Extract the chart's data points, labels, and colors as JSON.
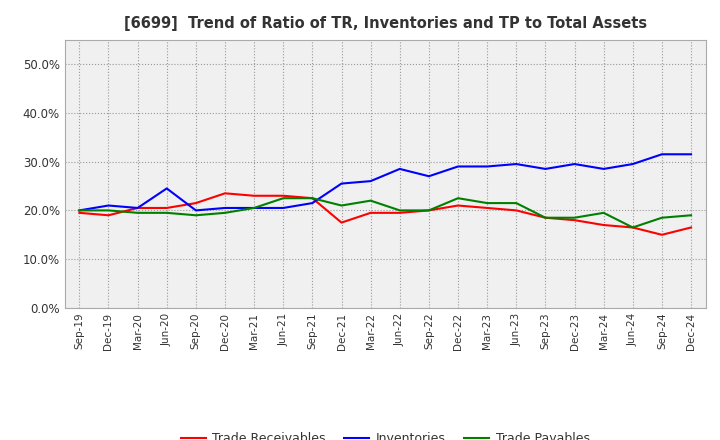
{
  "title": "[6699]  Trend of Ratio of TR, Inventories and TP to Total Assets",
  "x_labels": [
    "Sep-19",
    "Dec-19",
    "Mar-20",
    "Jun-20",
    "Sep-20",
    "Dec-20",
    "Mar-21",
    "Jun-21",
    "Sep-21",
    "Dec-21",
    "Mar-22",
    "Jun-22",
    "Sep-22",
    "Dec-22",
    "Mar-23",
    "Jun-23",
    "Sep-23",
    "Dec-23",
    "Mar-24",
    "Jun-24",
    "Sep-24",
    "Dec-24"
  ],
  "trade_receivables": [
    19.5,
    19.0,
    20.5,
    20.5,
    21.5,
    23.5,
    23.0,
    23.0,
    22.5,
    17.5,
    19.5,
    19.5,
    20.0,
    21.0,
    20.5,
    20.0,
    18.5,
    18.0,
    17.0,
    16.5,
    15.0,
    16.5
  ],
  "inventories": [
    20.0,
    21.0,
    20.5,
    24.5,
    20.0,
    20.5,
    20.5,
    20.5,
    21.5,
    25.5,
    26.0,
    28.5,
    27.0,
    29.0,
    29.0,
    29.5,
    28.5,
    29.5,
    28.5,
    29.5,
    31.5,
    31.5
  ],
  "trade_payables": [
    20.0,
    20.0,
    19.5,
    19.5,
    19.0,
    19.5,
    20.5,
    22.5,
    22.5,
    21.0,
    22.0,
    20.0,
    20.0,
    22.5,
    21.5,
    21.5,
    18.5,
    18.5,
    19.5,
    16.5,
    18.5,
    19.0
  ],
  "ylim": [
    0,
    55
  ],
  "yticks": [
    0.0,
    10.0,
    20.0,
    30.0,
    40.0,
    50.0
  ],
  "color_tr": "#ff0000",
  "color_inv": "#0000ff",
  "color_tp": "#008000",
  "background_color": "#ffffff",
  "plot_bg_color": "#f0f0f0",
  "grid_color": "#999999",
  "title_color": "#333333",
  "legend_labels": [
    "Trade Receivables",
    "Inventories",
    "Trade Payables"
  ]
}
